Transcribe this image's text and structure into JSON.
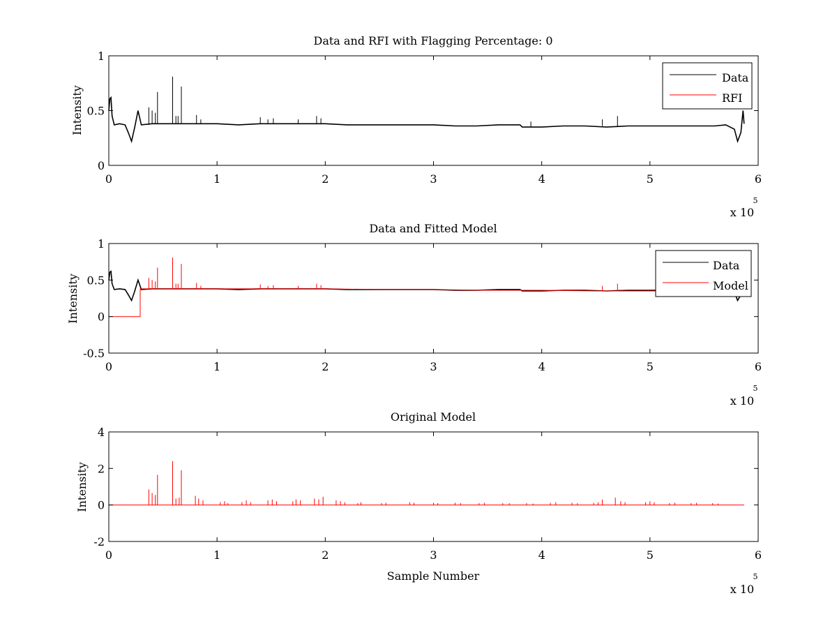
{
  "figure": {
    "background": "#ffffff",
    "data_color": "#000000",
    "model_color": "#ff0000"
  },
  "chart_data": [
    {
      "type": "line",
      "title": "Data and RFI with Flagging Percentage: 0",
      "xlabel": "",
      "ylabel": "Intensity",
      "xlim": [
        0,
        6
      ],
      "ylim": [
        0,
        1
      ],
      "xticks": [
        "0",
        "1",
        "2",
        "3",
        "4",
        "5",
        "6"
      ],
      "yticks": [
        "0",
        "0.5",
        "1"
      ],
      "x_multiplier": {
        "base": "x 10",
        "exponent": "5"
      },
      "grid": false,
      "legend": "top-right",
      "series": [
        {
          "name": "Data",
          "color": "#000000",
          "points": [
            [
              0,
              0.5
            ],
            [
              0.01,
              0.61
            ],
            [
              0.02,
              0.62
            ],
            [
              0.03,
              0.45
            ],
            [
              0.05,
              0.37
            ],
            [
              0.1,
              0.38
            ],
            [
              0.15,
              0.37
            ],
            [
              0.18,
              0.3
            ],
            [
              0.21,
              0.22
            ],
            [
              0.24,
              0.35
            ],
            [
              0.27,
              0.5
            ],
            [
              0.3,
              0.37
            ],
            [
              0.4,
              0.38
            ],
            [
              0.6,
              0.38
            ],
            [
              0.8,
              0.38
            ],
            [
              1.0,
              0.38
            ],
            [
              1.2,
              0.37
            ],
            [
              1.4,
              0.38
            ],
            [
              1.6,
              0.38
            ],
            [
              1.8,
              0.38
            ],
            [
              2.0,
              0.38
            ],
            [
              2.2,
              0.37
            ],
            [
              2.4,
              0.37
            ],
            [
              2.6,
              0.37
            ],
            [
              2.8,
              0.37
            ],
            [
              3.0,
              0.37
            ],
            [
              3.2,
              0.36
            ],
            [
              3.4,
              0.36
            ],
            [
              3.6,
              0.37
            ],
            [
              3.8,
              0.37
            ],
            [
              3.82,
              0.35
            ],
            [
              4.0,
              0.35
            ],
            [
              4.2,
              0.36
            ],
            [
              4.4,
              0.36
            ],
            [
              4.6,
              0.35
            ],
            [
              4.8,
              0.36
            ],
            [
              5.0,
              0.36
            ],
            [
              5.2,
              0.36
            ],
            [
              5.4,
              0.36
            ],
            [
              5.6,
              0.36
            ],
            [
              5.7,
              0.37
            ],
            [
              5.78,
              0.33
            ],
            [
              5.81,
              0.22
            ],
            [
              5.84,
              0.3
            ],
            [
              5.86,
              0.5
            ],
            [
              5.87,
              0.38
            ]
          ],
          "spikes": [
            [
              0.37,
              0.53
            ],
            [
              0.4,
              0.5
            ],
            [
              0.43,
              0.48
            ],
            [
              0.45,
              0.67
            ],
            [
              0.59,
              0.81
            ],
            [
              0.62,
              0.45
            ],
            [
              0.64,
              0.45
            ],
            [
              0.67,
              0.72
            ],
            [
              0.81,
              0.46
            ],
            [
              0.85,
              0.42
            ],
            [
              1.4,
              0.44
            ],
            [
              1.47,
              0.42
            ],
            [
              1.52,
              0.43
            ],
            [
              1.75,
              0.42
            ],
            [
              1.92,
              0.45
            ],
            [
              1.96,
              0.43
            ],
            [
              3.9,
              0.4
            ],
            [
              4.56,
              0.42
            ],
            [
              4.7,
              0.45
            ]
          ]
        },
        {
          "name": "RFI",
          "color": "#ff0000",
          "points": []
        }
      ]
    },
    {
      "type": "line",
      "title": "Data and Fitted Model",
      "xlabel": "",
      "ylabel": "Intensity",
      "xlim": [
        0,
        6
      ],
      "ylim": [
        -0.5,
        1
      ],
      "xticks": [
        "0",
        "1",
        "2",
        "3",
        "4",
        "5",
        "6"
      ],
      "yticks": [
        "-0.5",
        "0",
        "0.5",
        "1"
      ],
      "x_multiplier": {
        "base": "x 10",
        "exponent": "5"
      },
      "grid": false,
      "legend": "top-right",
      "series": [
        {
          "name": "Data",
          "color": "#000000",
          "points": [
            [
              0,
              0.5
            ],
            [
              0.01,
              0.61
            ],
            [
              0.02,
              0.62
            ],
            [
              0.03,
              0.45
            ],
            [
              0.05,
              0.37
            ],
            [
              0.1,
              0.38
            ],
            [
              0.15,
              0.37
            ],
            [
              0.18,
              0.3
            ],
            [
              0.21,
              0.22
            ],
            [
              0.24,
              0.35
            ],
            [
              0.27,
              0.5
            ],
            [
              0.3,
              0.37
            ],
            [
              0.4,
              0.38
            ],
            [
              0.6,
              0.38
            ],
            [
              0.8,
              0.38
            ],
            [
              1.0,
              0.38
            ],
            [
              1.2,
              0.37
            ],
            [
              1.4,
              0.38
            ],
            [
              1.6,
              0.38
            ],
            [
              1.8,
              0.38
            ],
            [
              2.0,
              0.38
            ],
            [
              2.2,
              0.37
            ],
            [
              2.4,
              0.37
            ],
            [
              2.6,
              0.37
            ],
            [
              2.8,
              0.37
            ],
            [
              3.0,
              0.37
            ],
            [
              3.2,
              0.36
            ],
            [
              3.4,
              0.36
            ],
            [
              3.6,
              0.37
            ],
            [
              3.8,
              0.37
            ],
            [
              3.82,
              0.35
            ],
            [
              4.0,
              0.35
            ],
            [
              4.2,
              0.36
            ],
            [
              4.4,
              0.36
            ],
            [
              4.6,
              0.35
            ],
            [
              4.8,
              0.36
            ],
            [
              5.0,
              0.36
            ],
            [
              5.2,
              0.36
            ],
            [
              5.4,
              0.36
            ],
            [
              5.6,
              0.36
            ],
            [
              5.7,
              0.37
            ],
            [
              5.78,
              0.33
            ],
            [
              5.81,
              0.22
            ],
            [
              5.84,
              0.3
            ],
            [
              5.86,
              0.5
            ],
            [
              5.87,
              0.38
            ]
          ]
        },
        {
          "name": "Model",
          "color": "#ff0000",
          "points": [
            [
              0,
              0
            ],
            [
              0.29,
              0
            ],
            [
              0.29,
              0.38
            ],
            [
              0.6,
              0.38
            ],
            [
              1.0,
              0.38
            ],
            [
              1.5,
              0.38
            ],
            [
              2.0,
              0.38
            ],
            [
              2.5,
              0.37
            ],
            [
              3.0,
              0.37
            ],
            [
              3.5,
              0.36
            ],
            [
              4.0,
              0.36
            ],
            [
              4.5,
              0.35
            ],
            [
              5.0,
              0.35
            ],
            [
              5.5,
              0.35
            ],
            [
              5.87,
              0.35
            ]
          ],
          "spikes": [
            [
              0.37,
              0.53
            ],
            [
              0.4,
              0.5
            ],
            [
              0.43,
              0.48
            ],
            [
              0.45,
              0.67
            ],
            [
              0.59,
              0.81
            ],
            [
              0.62,
              0.45
            ],
            [
              0.64,
              0.45
            ],
            [
              0.67,
              0.72
            ],
            [
              0.81,
              0.46
            ],
            [
              0.85,
              0.42
            ],
            [
              1.4,
              0.44
            ],
            [
              1.47,
              0.42
            ],
            [
              1.52,
              0.43
            ],
            [
              1.75,
              0.42
            ],
            [
              1.92,
              0.45
            ],
            [
              1.96,
              0.43
            ],
            [
              4.56,
              0.42
            ],
            [
              4.7,
              0.45
            ]
          ]
        }
      ]
    },
    {
      "type": "line",
      "title": "Original Model",
      "xlabel": "Sample Number",
      "ylabel": "Intensity",
      "xlim": [
        0,
        6
      ],
      "ylim": [
        -2,
        4
      ],
      "xticks": [
        "0",
        "1",
        "2",
        "3",
        "4",
        "5",
        "6"
      ],
      "yticks": [
        "-2",
        "0",
        "2",
        "4"
      ],
      "x_multiplier": {
        "base": "x 10",
        "exponent": "5"
      },
      "grid": false,
      "legend": "none",
      "series": [
        {
          "color": "#ff0000",
          "points": [
            [
              0,
              0
            ],
            [
              5.87,
              0
            ]
          ],
          "spikes": [
            [
              0.37,
              0.85
            ],
            [
              0.4,
              0.65
            ],
            [
              0.43,
              0.55
            ],
            [
              0.45,
              1.65
            ],
            [
              0.59,
              2.4
            ],
            [
              0.62,
              0.35
            ],
            [
              0.65,
              0.4
            ],
            [
              0.67,
              1.9
            ],
            [
              0.8,
              0.5
            ],
            [
              0.83,
              0.35
            ],
            [
              0.87,
              0.25
            ],
            [
              1.03,
              0.15
            ],
            [
              1.07,
              0.2
            ],
            [
              1.1,
              0.1
            ],
            [
              1.23,
              0.15
            ],
            [
              1.27,
              0.25
            ],
            [
              1.31,
              0.15
            ],
            [
              1.47,
              0.25
            ],
            [
              1.51,
              0.3
            ],
            [
              1.55,
              0.2
            ],
            [
              1.7,
              0.2
            ],
            [
              1.73,
              0.3
            ],
            [
              1.77,
              0.25
            ],
            [
              1.9,
              0.35
            ],
            [
              1.94,
              0.3
            ],
            [
              1.98,
              0.45
            ],
            [
              2.1,
              0.25
            ],
            [
              2.14,
              0.2
            ],
            [
              2.18,
              0.15
            ],
            [
              2.3,
              0.1
            ],
            [
              2.33,
              0.15
            ],
            [
              2.52,
              0.1
            ],
            [
              2.56,
              0.12
            ],
            [
              2.78,
              0.15
            ],
            [
              2.82,
              0.12
            ],
            [
              3.0,
              0.12
            ],
            [
              3.04,
              0.1
            ],
            [
              3.2,
              0.12
            ],
            [
              3.25,
              0.1
            ],
            [
              3.42,
              0.1
            ],
            [
              3.47,
              0.12
            ],
            [
              3.64,
              0.1
            ],
            [
              3.7,
              0.1
            ],
            [
              3.86,
              0.1
            ],
            [
              3.92,
              0.08
            ],
            [
              4.08,
              0.12
            ],
            [
              4.13,
              0.15
            ],
            [
              4.28,
              0.12
            ],
            [
              4.33,
              0.1
            ],
            [
              4.48,
              0.12
            ],
            [
              4.52,
              0.15
            ],
            [
              4.56,
              0.3
            ],
            [
              4.68,
              0.4
            ],
            [
              4.73,
              0.2
            ],
            [
              4.77,
              0.15
            ],
            [
              4.96,
              0.15
            ],
            [
              5.0,
              0.2
            ],
            [
              5.04,
              0.15
            ],
            [
              5.18,
              0.1
            ],
            [
              5.23,
              0.12
            ],
            [
              5.38,
              0.1
            ],
            [
              5.43,
              0.12
            ],
            [
              5.58,
              0.1
            ],
            [
              5.63,
              0.08
            ]
          ]
        }
      ]
    }
  ]
}
